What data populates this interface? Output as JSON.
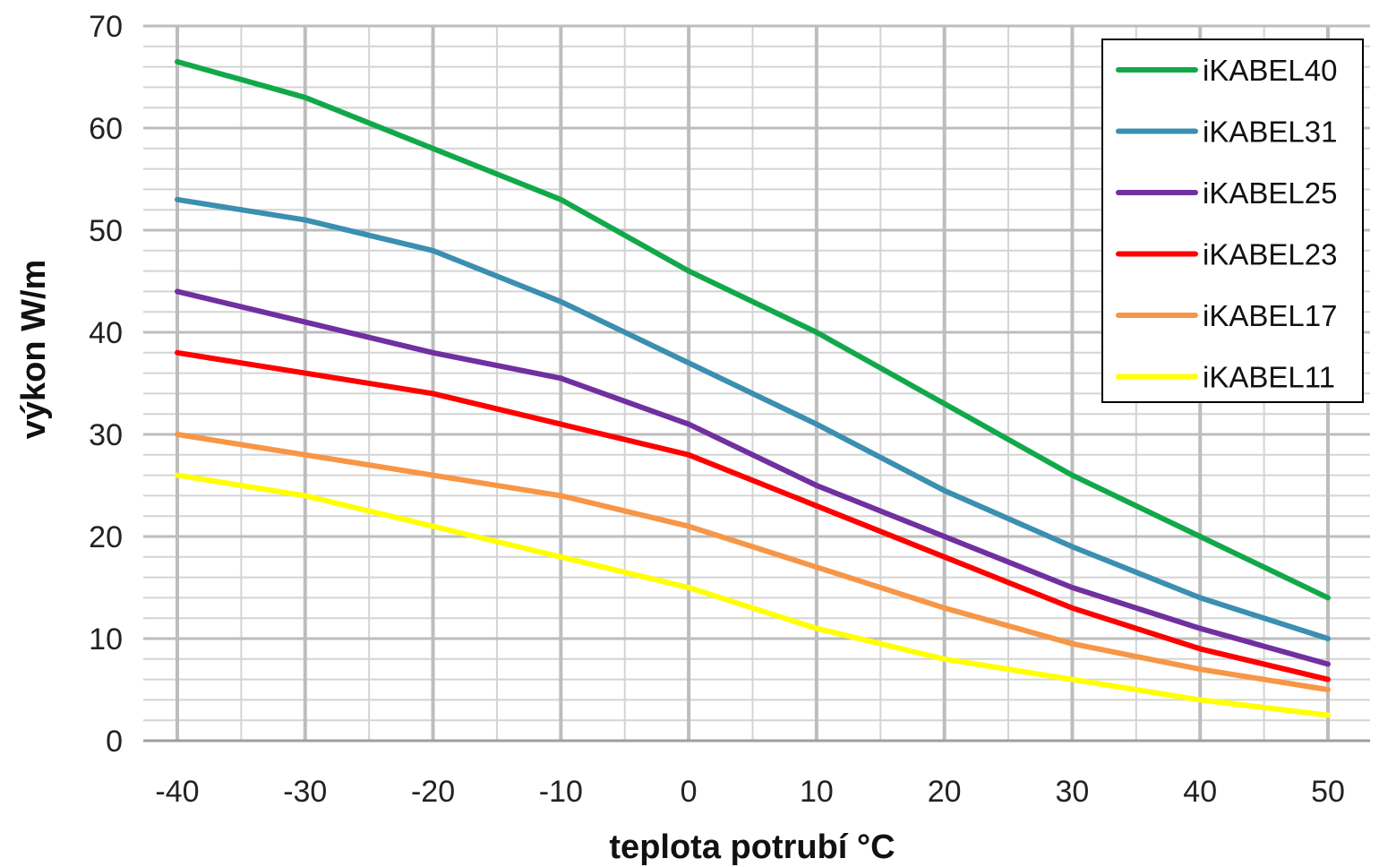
{
  "chart_data": {
    "type": "line",
    "xlabel": "teplota potrubí °C",
    "ylabel": "výkon W/m",
    "x": [
      -40,
      -30,
      -20,
      -10,
      0,
      10,
      20,
      30,
      40,
      50
    ],
    "xlim": [
      -40,
      50
    ],
    "ylim": [
      0,
      70
    ],
    "xticks": [
      -40,
      -30,
      -20,
      -10,
      0,
      10,
      20,
      30,
      40,
      50
    ],
    "yticks": [
      0,
      10,
      20,
      30,
      40,
      50,
      60,
      70
    ],
    "grid": true,
    "legend_position": "top-right",
    "series": [
      {
        "name": "iKABEL40",
        "color": "#12a84a",
        "values": [
          66.5,
          63,
          58,
          53,
          46,
          40,
          33,
          26,
          20,
          14
        ]
      },
      {
        "name": "iKABEL31",
        "color": "#3b8fb0",
        "values": [
          53,
          51,
          48,
          43,
          37,
          31,
          24.5,
          19,
          14,
          10
        ]
      },
      {
        "name": "iKABEL25",
        "color": "#7030a0",
        "values": [
          44,
          41,
          38,
          35.5,
          31,
          25,
          20,
          15,
          11,
          7.5
        ]
      },
      {
        "name": "iKABEL23",
        "color": "#ff0000",
        "values": [
          38,
          36,
          34,
          31,
          28,
          23,
          18,
          13,
          9,
          6
        ]
      },
      {
        "name": "iKABEL17",
        "color": "#f79646",
        "values": [
          30,
          28,
          26,
          24,
          21,
          17,
          13,
          9.5,
          7,
          5
        ]
      },
      {
        "name": "iKABEL11",
        "color": "#ffff00",
        "values": [
          26,
          24,
          21,
          18,
          15,
          11,
          8,
          6,
          4,
          2.5
        ]
      }
    ]
  }
}
